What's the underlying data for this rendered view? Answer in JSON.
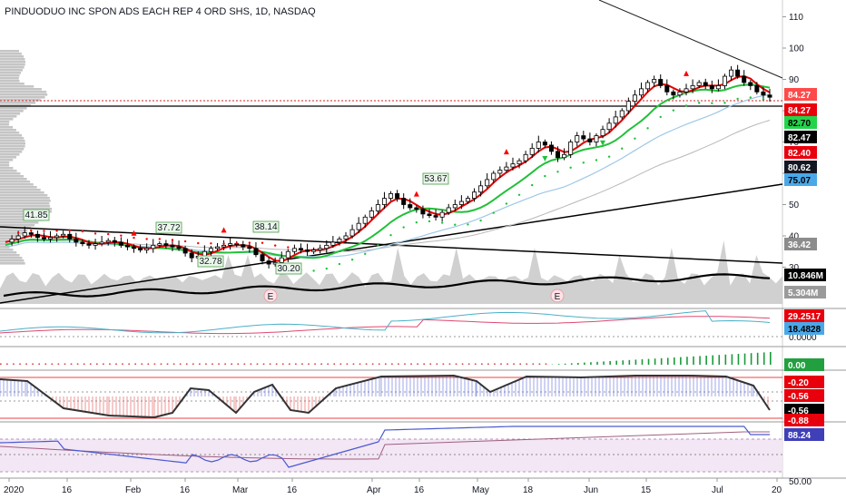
{
  "title": "PINDUODUO INC SPON ADS EACH REP 4 ORD SHS, 1D, NASDAQ",
  "colors": {
    "up": "#26a69a",
    "down": "#000000",
    "sma_fast": "#e00000",
    "sma_mid": "#22c03a",
    "sma_slow": "#9ec8e6",
    "sma_long": "#b8b8b8",
    "red": "#ff0000",
    "green": "#22c03a",
    "blue_line": "#5a6ad8",
    "pink_line": "#e04870",
    "volume_area": "#c8c8c8",
    "purple_band": "#f3e6f5"
  },
  "chart_data": [
    {
      "type": "candlestick",
      "panel": "price",
      "y_axis_ticks": [
        110,
        100,
        90,
        80,
        70,
        60,
        50,
        40,
        30
      ],
      "ylim": [
        28,
        116
      ],
      "x_axis_labels": [
        "2020",
        "16",
        "Feb",
        "16",
        "Mar",
        "16",
        "Apr",
        "16",
        "May",
        "18",
        "Jun",
        "15",
        "Jul",
        "20"
      ],
      "annotations": [
        "41.85",
        "37.72",
        "38.14",
        "32.78",
        "30.20",
        "53.67"
      ],
      "price_badges": [
        {
          "value": "84.27",
          "bg": "#ff4a4a",
          "fg": "#ffffff"
        },
        {
          "value": "84.27",
          "bg": "#e8000c",
          "fg": "#ffffff"
        },
        {
          "value": "82.70",
          "bg": "#22d44a",
          "fg": "#000000"
        },
        {
          "value": "82.47",
          "bg": "#000000",
          "fg": "#ffffff"
        },
        {
          "value": "82.40",
          "bg": "#e8000c",
          "fg": "#ffffff"
        },
        {
          "value": "80.62",
          "bg": "#131722",
          "fg": "#ffffff"
        },
        {
          "value": "75.07",
          "bg": "#4aa8e8",
          "fg": "#000000"
        },
        {
          "value": "36.42",
          "bg": "#8c8c8c",
          "fg": "#ffffff"
        },
        {
          "value": "10.846M",
          "bg": "#000000",
          "fg": "#ffffff"
        },
        {
          "value": "5.304M",
          "bg": "#9a9a9a",
          "fg": "#ffffff"
        }
      ],
      "earnings_markers": [
        "E",
        "E"
      ],
      "close_series": [
        38,
        39,
        40,
        41,
        40.5,
        39.5,
        39,
        39.5,
        40,
        40.5,
        39,
        38,
        37.5,
        37,
        37.5,
        38,
        38.5,
        38,
        37,
        36.5,
        36,
        35.5,
        36,
        37,
        37.5,
        37,
        36.5,
        36,
        34.5,
        33,
        33.5,
        35,
        36,
        36.5,
        37,
        37.5,
        37.2,
        36.5,
        36,
        34,
        32,
        31,
        31.5,
        33,
        35,
        36,
        35.5,
        35,
        35.5,
        36,
        37,
        38,
        39,
        40,
        42,
        44,
        46,
        48,
        50,
        52,
        53.5,
        52,
        50,
        49,
        48.5,
        47,
        46.5,
        46,
        47.5,
        49,
        50,
        51,
        52,
        54,
        56,
        58,
        60,
        61,
        62,
        63,
        64,
        66,
        68,
        70,
        69,
        67,
        65,
        66,
        70,
        72,
        71,
        70,
        72,
        74,
        76,
        78,
        80,
        83,
        85,
        87,
        89,
        90,
        88,
        86,
        85,
        86,
        87,
        88,
        89,
        88,
        87,
        88,
        91,
        93,
        91,
        89,
        88,
        86,
        85,
        84.3
      ]
    },
    {
      "type": "area",
      "panel": "volume",
      "series": [
        {
          "name": "10.846M",
          "values": [
            10.8
          ]
        },
        {
          "name": "5.304M",
          "values": [
            5.3
          ]
        }
      ]
    },
    {
      "type": "line",
      "panel": "oscillator-1",
      "y_axis_ticks": [
        "0.0000"
      ],
      "values": [
        "29.2517",
        "18.4828"
      ]
    },
    {
      "type": "bar",
      "panel": "oscillator-2",
      "y_axis_ticks": [
        "0.00"
      ]
    },
    {
      "type": "line",
      "panel": "oscillator-3",
      "values": [
        "-0.20",
        "-0.56",
        "-0.56",
        "-0.88"
      ]
    },
    {
      "type": "line",
      "panel": "oscillator-4",
      "y_axis_ticks": [
        "50.00"
      ],
      "values": [
        "88.24"
      ]
    }
  ]
}
